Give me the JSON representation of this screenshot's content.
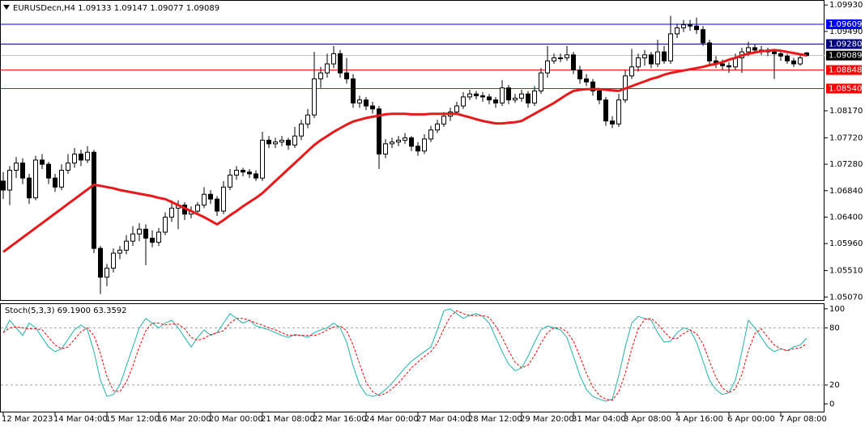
{
  "chart_data": {
    "type": "candlestick",
    "header": "EURUSDecn,H4  1.09133 1.09147 1.09077 1.09089",
    "bull_color": "#ffffff",
    "bear_color": "#000000",
    "categories": [
      "12 Mar 2023",
      null,
      null,
      null,
      null,
      null,
      null,
      null,
      "14 Mar 04:00",
      null,
      null,
      null,
      null,
      null,
      null,
      null,
      "15 Mar 12:00",
      null,
      null,
      null,
      null,
      null,
      null,
      null,
      "16 Mar 20:00",
      null,
      null,
      null,
      null,
      null,
      null,
      null,
      "20 Mar 00:00",
      null,
      null,
      null,
      null,
      null,
      null,
      null,
      "21 Mar 08:00",
      null,
      null,
      null,
      null,
      null,
      null,
      null,
      "22 Mar 16:00",
      null,
      null,
      null,
      null,
      null,
      null,
      null,
      "24 Mar 00:00",
      null,
      null,
      null,
      null,
      null,
      null,
      null,
      "27 Mar 04:00",
      null,
      null,
      null,
      null,
      null,
      null,
      null,
      "28 Mar 12:00",
      null,
      null,
      null,
      null,
      null,
      null,
      null,
      "29 Mar 20:00",
      null,
      null,
      null,
      null,
      null,
      null,
      null,
      "31 Mar 04:00",
      null,
      null,
      null,
      null,
      null,
      null,
      null,
      "3 Apr 08:00",
      null,
      null,
      null,
      null,
      null,
      null,
      null,
      "4 Apr 16:00",
      null,
      null,
      null,
      null,
      null,
      null,
      null,
      "6 Apr 00:00",
      null,
      null,
      null,
      null,
      null,
      null,
      null,
      "7 Apr 08:00",
      null,
      null,
      null,
      null
    ],
    "candles": [
      [
        1.07,
        1.0715,
        1.067,
        1.0685
      ],
      [
        1.0685,
        1.0725,
        1.066,
        1.0718
      ],
      [
        1.0718,
        1.074,
        1.0705,
        1.073
      ],
      [
        1.073,
        1.0738,
        1.0695,
        1.0705
      ],
      [
        1.0705,
        1.0712,
        1.0662,
        1.0672
      ],
      [
        1.0672,
        1.0742,
        1.0668,
        1.0735
      ],
      [
        1.0735,
        1.0745,
        1.072,
        1.0728
      ],
      [
        1.0728,
        1.0732,
        1.0695,
        1.0705
      ],
      [
        1.0705,
        1.0712,
        1.0682,
        1.069
      ],
      [
        1.069,
        1.0728,
        1.0685,
        1.0718
      ],
      [
        1.0718,
        1.0745,
        1.0712,
        1.073
      ],
      [
        1.073,
        1.0755,
        1.0722,
        1.0745
      ],
      [
        1.0745,
        1.0752,
        1.0725,
        1.0735
      ],
      [
        1.0735,
        1.0758,
        1.073,
        1.0748
      ],
      [
        1.0748,
        1.0752,
        1.058,
        1.0588
      ],
      [
        1.0588,
        1.0592,
        1.0512,
        1.054
      ],
      [
        1.054,
        1.0562,
        1.0525,
        1.0555
      ],
      [
        1.0555,
        1.0588,
        1.0548,
        1.058
      ],
      [
        1.058,
        1.0592,
        1.057,
        1.0585
      ],
      [
        1.0585,
        1.061,
        1.0578,
        1.06
      ],
      [
        1.06,
        1.0625,
        1.0592,
        1.0612
      ],
      [
        1.0612,
        1.063,
        1.06,
        1.062
      ],
      [
        1.062,
        1.0628,
        1.056,
        1.0605
      ],
      [
        1.0605,
        1.0618,
        1.059,
        1.0598
      ],
      [
        1.0598,
        1.0622,
        1.0592,
        1.0615
      ],
      [
        1.0615,
        1.0648,
        1.061,
        1.064
      ],
      [
        1.064,
        1.0668,
        1.0632,
        1.0655
      ],
      [
        1.0655,
        1.0668,
        1.062,
        1.066
      ],
      [
        1.066,
        1.0665,
        1.0635,
        1.0645
      ],
      [
        1.0645,
        1.0658,
        1.0638,
        1.065
      ],
      [
        1.065,
        1.0665,
        1.0645,
        1.066
      ],
      [
        1.066,
        1.069,
        1.0655,
        1.0678
      ],
      [
        1.0678,
        1.0685,
        1.0662,
        1.067
      ],
      [
        1.067,
        1.0675,
        1.0642,
        1.065
      ],
      [
        1.065,
        1.07,
        1.0645,
        1.069
      ],
      [
        1.069,
        1.072,
        1.0685,
        1.071
      ],
      [
        1.071,
        1.0725,
        1.0702,
        1.0718
      ],
      [
        1.0718,
        1.0722,
        1.0708,
        1.0715
      ],
      [
        1.0715,
        1.072,
        1.0705,
        1.0712
      ],
      [
        1.0712,
        1.0718,
        1.07,
        1.0705
      ],
      [
        1.0705,
        1.0782,
        1.07,
        1.0768
      ],
      [
        1.0768,
        1.0775,
        1.0755,
        1.0762
      ],
      [
        1.0762,
        1.0772,
        1.0755,
        1.0765
      ],
      [
        1.0765,
        1.0775,
        1.0758,
        1.0768
      ],
      [
        1.0768,
        1.0772,
        1.0752,
        1.076
      ],
      [
        1.076,
        1.079,
        1.0755,
        1.0775
      ],
      [
        1.0775,
        1.0802,
        1.0768,
        1.0795
      ],
      [
        1.0795,
        1.082,
        1.0788,
        1.081
      ],
      [
        1.081,
        1.0915,
        1.0805,
        1.087
      ],
      [
        1.087,
        1.089,
        1.0855,
        1.088
      ],
      [
        1.088,
        1.0912,
        1.0872,
        1.0895
      ],
      [
        1.0895,
        1.0925,
        1.0888,
        1.0912
      ],
      [
        1.0912,
        1.0918,
        1.0872,
        1.088
      ],
      [
        1.088,
        1.0905,
        1.0862,
        1.087
      ],
      [
        1.087,
        1.0878,
        1.0822,
        1.083
      ],
      [
        1.083,
        1.0842,
        1.0822,
        1.0835
      ],
      [
        1.0835,
        1.084,
        1.0818,
        1.0825
      ],
      [
        1.0825,
        1.0832,
        1.0812,
        1.082
      ],
      [
        1.082,
        1.0825,
        1.072,
        1.0745
      ],
      [
        1.0745,
        1.077,
        1.0738,
        1.0762
      ],
      [
        1.0762,
        1.0772,
        1.0755,
        1.0765
      ],
      [
        1.0765,
        1.0775,
        1.0758,
        1.0768
      ],
      [
        1.0768,
        1.078,
        1.0762,
        1.0772
      ],
      [
        1.0772,
        1.0775,
        1.075,
        1.0758
      ],
      [
        1.0758,
        1.0765,
        1.0742,
        1.075
      ],
      [
        1.075,
        1.0778,
        1.0745,
        1.077
      ],
      [
        1.077,
        1.0792,
        1.0765,
        1.0785
      ],
      [
        1.0785,
        1.0802,
        1.078,
        1.0795
      ],
      [
        1.0795,
        1.0815,
        1.079,
        1.0808
      ],
      [
        1.0808,
        1.0822,
        1.08,
        1.0815
      ],
      [
        1.0815,
        1.0832,
        1.081,
        1.0825
      ],
      [
        1.0825,
        1.0848,
        1.082,
        1.084
      ],
      [
        1.084,
        1.0852,
        1.0835,
        1.0845
      ],
      [
        1.0845,
        1.085,
        1.0836,
        1.0842
      ],
      [
        1.0842,
        1.0848,
        1.0832,
        1.084
      ],
      [
        1.084,
        1.0845,
        1.0828,
        1.0835
      ],
      [
        1.0835,
        1.084,
        1.0822,
        1.083
      ],
      [
        1.083,
        1.0868,
        1.0825,
        1.0855
      ],
      [
        1.0855,
        1.086,
        1.0828,
        1.0835
      ],
      [
        1.0835,
        1.0845,
        1.083,
        1.0838
      ],
      [
        1.0838,
        1.0852,
        1.0832,
        1.0845
      ],
      [
        1.0845,
        1.085,
        1.0822,
        1.083
      ],
      [
        1.083,
        1.0858,
        1.0825,
        1.085
      ],
      [
        1.085,
        1.0888,
        1.0845,
        1.088
      ],
      [
        1.088,
        1.0925,
        1.0872,
        1.09
      ],
      [
        1.09,
        1.0912,
        1.0895,
        1.0905
      ],
      [
        1.0905,
        1.0912,
        1.0898,
        1.0905
      ],
      [
        1.0905,
        1.0925,
        1.09,
        1.091
      ],
      [
        1.091,
        1.0915,
        1.0878,
        1.0885
      ],
      [
        1.0885,
        1.0892,
        1.0862,
        1.087
      ],
      [
        1.087,
        1.0878,
        1.0858,
        1.0865
      ],
      [
        1.0865,
        1.087,
        1.0842,
        1.085
      ],
      [
        1.085,
        1.0855,
        1.0828,
        1.0835
      ],
      [
        1.0835,
        1.084,
        1.0792,
        1.08
      ],
      [
        1.08,
        1.0808,
        1.0788,
        1.0795
      ],
      [
        1.0795,
        1.0845,
        1.079,
        1.0835
      ],
      [
        1.0835,
        1.0885,
        1.083,
        1.0875
      ],
      [
        1.0875,
        1.092,
        1.087,
        1.089
      ],
      [
        1.089,
        1.0912,
        1.0882,
        1.0905
      ],
      [
        1.0905,
        1.0918,
        1.0892,
        1.091
      ],
      [
        1.091,
        1.0915,
        1.0888,
        1.0895
      ],
      [
        1.0895,
        1.0935,
        1.089,
        1.0915
      ],
      [
        1.0915,
        1.0925,
        1.0895,
        1.09
      ],
      [
        1.09,
        1.0975,
        1.0895,
        1.0945
      ],
      [
        1.0945,
        1.0962,
        1.0938,
        1.0955
      ],
      [
        1.0955,
        1.0968,
        1.0948,
        1.096
      ],
      [
        1.096,
        1.0968,
        1.095,
        1.0958
      ],
      [
        1.0958,
        1.0972,
        1.0945,
        1.0952
      ],
      [
        1.0952,
        1.0958,
        1.0925,
        1.093
      ],
      [
        1.093,
        1.0935,
        1.0895,
        1.09
      ],
      [
        1.09,
        1.0908,
        1.0888,
        1.0895
      ],
      [
        1.0895,
        1.0902,
        1.0885,
        1.0892
      ],
      [
        1.0892,
        1.0898,
        1.088,
        1.089
      ],
      [
        1.089,
        1.0912,
        1.0885,
        1.0905
      ],
      [
        1.0905,
        1.0922,
        1.088,
        1.0915
      ],
      [
        1.0915,
        1.0932,
        1.0908,
        1.0922
      ],
      [
        1.0922,
        1.0928,
        1.0912,
        1.0918
      ],
      [
        1.0918,
        1.0925,
        1.091,
        1.0918
      ],
      [
        1.0918,
        1.0922,
        1.0908,
        1.0915
      ],
      [
        1.0915,
        1.092,
        1.087,
        1.0912
      ],
      [
        1.0912,
        1.0915,
        1.09,
        1.0908
      ],
      [
        1.0908,
        1.0912,
        1.0895,
        1.09
      ],
      [
        1.09,
        1.0905,
        1.089,
        1.0895
      ],
      [
        1.0895,
        1.0912,
        1.0892,
        1.0905
      ],
      [
        1.09133,
        1.09147,
        1.09077,
        1.09089
      ]
    ],
    "moving_average": {
      "color": "#e8191b",
      "values": [
        1.0582,
        1.059,
        1.0598,
        1.0606,
        1.0614,
        1.0622,
        1.063,
        1.0638,
        1.0646,
        1.0654,
        1.0662,
        1.067,
        1.0678,
        1.0686,
        1.0694,
        1.0692,
        1.069,
        1.0688,
        1.0685,
        1.0683,
        1.0681,
        1.0679,
        1.0677,
        1.0675,
        1.0672,
        1.067,
        1.0665,
        1.066,
        1.0655,
        1.065,
        1.0645,
        1.064,
        1.0634,
        1.0628,
        1.0635,
        1.0643,
        1.065,
        1.0658,
        1.0665,
        1.0672,
        1.068,
        1.069,
        1.07,
        1.071,
        1.072,
        1.073,
        1.074,
        1.075,
        1.076,
        1.0768,
        1.0775,
        1.0782,
        1.0788,
        1.0794,
        1.0799,
        1.0802,
        1.0805,
        1.0807,
        1.0809,
        1.0811,
        1.0812,
        1.0812,
        1.0812,
        1.0811,
        1.0811,
        1.0811,
        1.0812,
        1.0812,
        1.0812,
        1.0812,
        1.0812,
        1.0809,
        1.0806,
        1.0803,
        1.08,
        1.0798,
        1.0796,
        1.0796,
        1.0797,
        1.0798,
        1.08,
        1.0806,
        1.0812,
        1.0818,
        1.0824,
        1.083,
        1.0837,
        1.0844,
        1.085,
        1.0852,
        1.0853,
        1.0853,
        1.0853,
        1.0852,
        1.0851,
        1.085,
        1.0854,
        1.0858,
        1.0862,
        1.0866,
        1.087,
        1.0873,
        1.0877,
        1.088,
        1.0882,
        1.0884,
        1.0886,
        1.0888,
        1.089,
        1.0893,
        1.0895,
        1.0898,
        1.0902,
        1.0905,
        1.0909,
        1.0912,
        1.0914,
        1.0916,
        1.0917,
        1.0918,
        1.0917,
        1.0915,
        1.0913,
        1.0911,
        1.0909
      ]
    },
    "ylim": [
      1.0502,
      1.1
    ],
    "yticks": [
      {
        "value": 1.0993,
        "label": "1.09930"
      },
      {
        "value": 1.0949,
        "label": "1.09490"
      },
      {
        "value": 1.0817,
        "label": "1.08170"
      },
      {
        "value": 1.0772,
        "label": "1.07720"
      },
      {
        "value": 1.0728,
        "label": "1.07280"
      },
      {
        "value": 1.0684,
        "label": "1.06840"
      },
      {
        "value": 1.064,
        "label": "1.06400"
      },
      {
        "value": 1.0596,
        "label": "1.05960"
      },
      {
        "value": 1.0551,
        "label": "1.05510"
      },
      {
        "value": 1.0507,
        "label": "1.05070"
      }
    ],
    "levels": [
      {
        "value": 1.09609,
        "label": "1.09609",
        "color": "#0000ff"
      },
      {
        "value": 1.0928,
        "label": "1.09280",
        "color": "#000080"
      },
      {
        "value": 1.08848,
        "label": "1.08848",
        "color": "#ff0000"
      },
      {
        "value": 1.0854,
        "label": "1.08540",
        "color": "#ff0000"
      }
    ],
    "last_price": {
      "value": 1.09089,
      "label": "1.09089",
      "color": "#000000"
    },
    "indicator": {
      "type": "line",
      "title": "Stoch(5,3,3) 69.1900 63.3592",
      "ylim": [
        -8,
        105
      ],
      "yticks": [
        100,
        80,
        20,
        0
      ],
      "levels": [
        80,
        20
      ],
      "series": [
        {
          "color": "#20b2aa",
          "values": [
            75,
            88,
            80,
            72,
            85,
            80,
            70,
            60,
            55,
            58,
            68,
            78,
            83,
            78,
            55,
            25,
            8,
            10,
            20,
            40,
            60,
            80,
            90,
            85,
            80,
            85,
            88,
            80,
            70,
            60,
            70,
            78,
            72,
            75,
            85,
            95,
            90,
            85,
            88,
            82,
            80,
            78,
            75,
            72,
            70,
            73,
            72,
            70,
            75,
            78,
            80,
            85,
            80,
            65,
            40,
            20,
            10,
            8,
            10,
            15,
            22,
            30,
            38,
            45,
            50,
            55,
            60,
            78,
            98,
            100,
            95,
            90,
            93,
            95,
            92,
            85,
            70,
            55,
            42,
            35,
            38,
            50,
            65,
            78,
            82,
            80,
            78,
            70,
            50,
            30,
            15,
            8,
            5,
            3,
            5,
            30,
            60,
            85,
            92,
            90,
            88,
            75,
            65,
            66,
            75,
            80,
            78,
            65,
            45,
            25,
            15,
            10,
            12,
            25,
            55,
            88,
            80,
            70,
            60,
            55,
            58,
            56,
            60,
            62,
            69.19
          ]
        },
        {
          "color": "#ff0000",
          "dash": true,
          "values": [
            75,
            80,
            81,
            80,
            79,
            79,
            78,
            70,
            62,
            58,
            60,
            68,
            76,
            80,
            72,
            53,
            29,
            14,
            13,
            23,
            40,
            60,
            77,
            85,
            85,
            83,
            84,
            84,
            79,
            70,
            67,
            69,
            73,
            75,
            77,
            85,
            90,
            90,
            88,
            85,
            83,
            80,
            78,
            75,
            72,
            72,
            72,
            72,
            72,
            74,
            78,
            81,
            82,
            77,
            62,
            42,
            23,
            13,
            9,
            11,
            16,
            22,
            30,
            38,
            44,
            50,
            55,
            64,
            79,
            92,
            98,
            95,
            93,
            93,
            93,
            91,
            82,
            70,
            56,
            44,
            38,
            41,
            51,
            64,
            75,
            80,
            80,
            76,
            66,
            50,
            32,
            18,
            9,
            5,
            4,
            13,
            32,
            58,
            79,
            89,
            90,
            84,
            76,
            69,
            69,
            74,
            78,
            74,
            63,
            45,
            28,
            17,
            12,
            16,
            31,
            56,
            74,
            79,
            70,
            62,
            58,
            56,
            58,
            59,
            63.3592
          ]
        }
      ]
    }
  }
}
